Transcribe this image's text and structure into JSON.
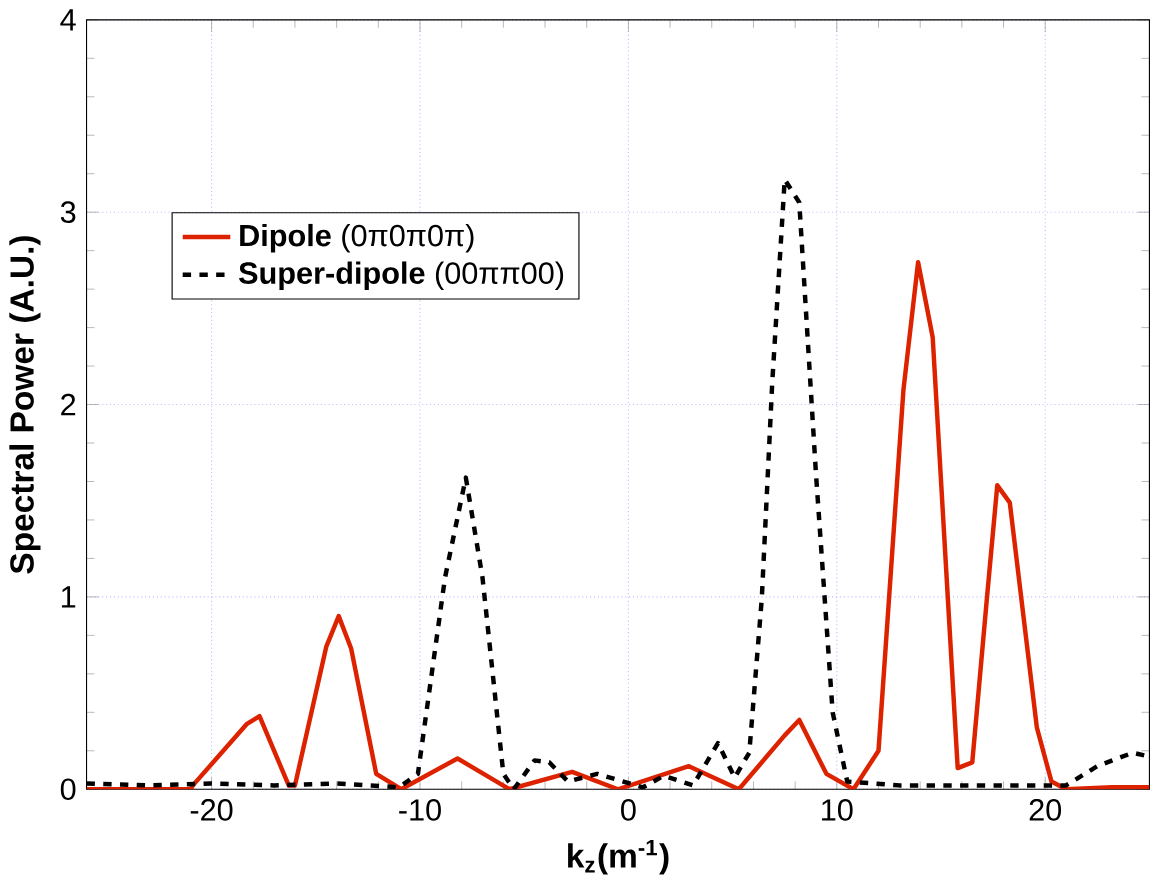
{
  "chart_data": {
    "type": "line",
    "xlabel": "k$_{z}$(m$^{-1}$)",
    "ylabel": "Spectral Power (A.U.)",
    "xlim": [
      -26,
      25
    ],
    "ylim": [
      0,
      4
    ],
    "xticks": [
      -20,
      -10,
      0,
      10,
      20
    ],
    "yticks": [
      0,
      1,
      2,
      3,
      4
    ],
    "grid": true,
    "legend": "top left",
    "marker": "none",
    "series": [
      {
        "name": "**Dipole** (0π0π0π)",
        "color": "#dd2200",
        "line_style": "solid",
        "x": [
          -26,
          -21,
          -20.9,
          -18.3,
          -17.7,
          -16.3,
          -16,
          -14.5,
          -13.9,
          -13.3,
          -12.1,
          -10.9,
          -8.2,
          -5.7,
          -2.7,
          -0.5,
          2.9,
          5.3,
          7.5,
          8.2,
          9.5,
          10.8,
          12,
          13.2,
          13.9,
          14.6,
          15.8,
          16.5,
          17.2,
          17.7,
          18.3,
          19.6,
          20.3,
          21,
          23.2,
          25
        ],
        "values": [
          0,
          0,
          0.02,
          0.34,
          0.38,
          0.02,
          0.02,
          0.74,
          0.9,
          0.73,
          0.08,
          0,
          0.16,
          0,
          0.09,
          0,
          0.12,
          0,
          0.28,
          0.36,
          0.08,
          0,
          0.2,
          2.08,
          2.74,
          2.35,
          0.11,
          0.14,
          0.99,
          1.58,
          1.49,
          0.32,
          0.04,
          0,
          0.01,
          0.01
        ]
      },
      {
        "name": "**Super-dipole** (00ππ00)",
        "color": "#000000",
        "line_style": "dashed",
        "x": [
          -26,
          -23,
          -20,
          -17,
          -14,
          -11,
          -10.1,
          -8.8,
          -7.8,
          -7,
          -6,
          -5.5,
          -4.5,
          -3.8,
          -2.9,
          -1.5,
          0.7,
          1.7,
          3.1,
          4.3,
          5.1,
          5.8,
          6.4,
          6.9,
          7.5,
          8.2,
          9,
          9.8,
          10.5,
          13,
          16,
          19,
          21,
          22.5,
          24.2,
          25
        ],
        "values": [
          0.03,
          0.02,
          0.03,
          0.02,
          0.03,
          0.01,
          0.08,
          1.1,
          1.62,
          1.1,
          0.08,
          0,
          0.15,
          0.14,
          0.04,
          0.08,
          0.01,
          0.07,
          0.02,
          0.24,
          0.06,
          0.19,
          0.99,
          2.11,
          3.17,
          3.05,
          1.64,
          0.4,
          0.04,
          0.02,
          0.02,
          0.02,
          0.02,
          0.12,
          0.19,
          0.17
        ]
      }
    ]
  }
}
